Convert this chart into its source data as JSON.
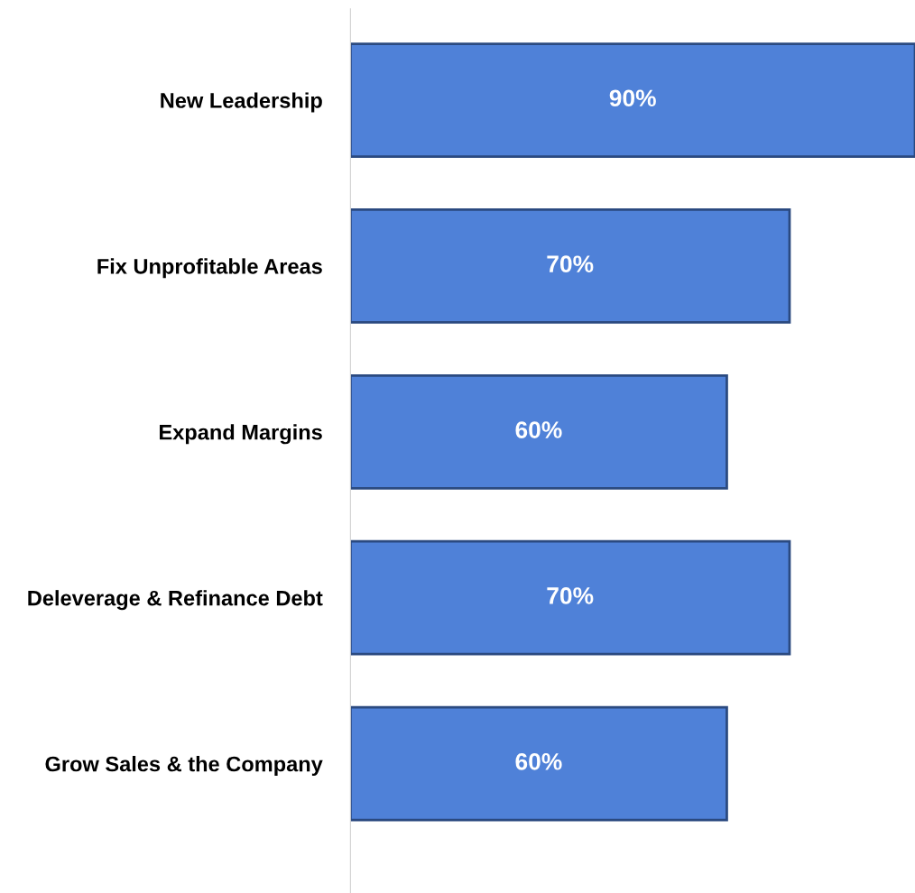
{
  "chart_data": {
    "type": "bar",
    "orientation": "horizontal",
    "categories": [
      "New Leadership",
      "Fix Unprofitable Areas",
      "Expand Margins",
      "Deleverage & Refinance Debt",
      "Grow Sales & the Company"
    ],
    "values": [
      90,
      70,
      60,
      70,
      60
    ],
    "value_labels": [
      "90%",
      "70%",
      "60%",
      "70%",
      "60%"
    ],
    "color": "#4f81d8",
    "grid": false,
    "legend": false
  }
}
